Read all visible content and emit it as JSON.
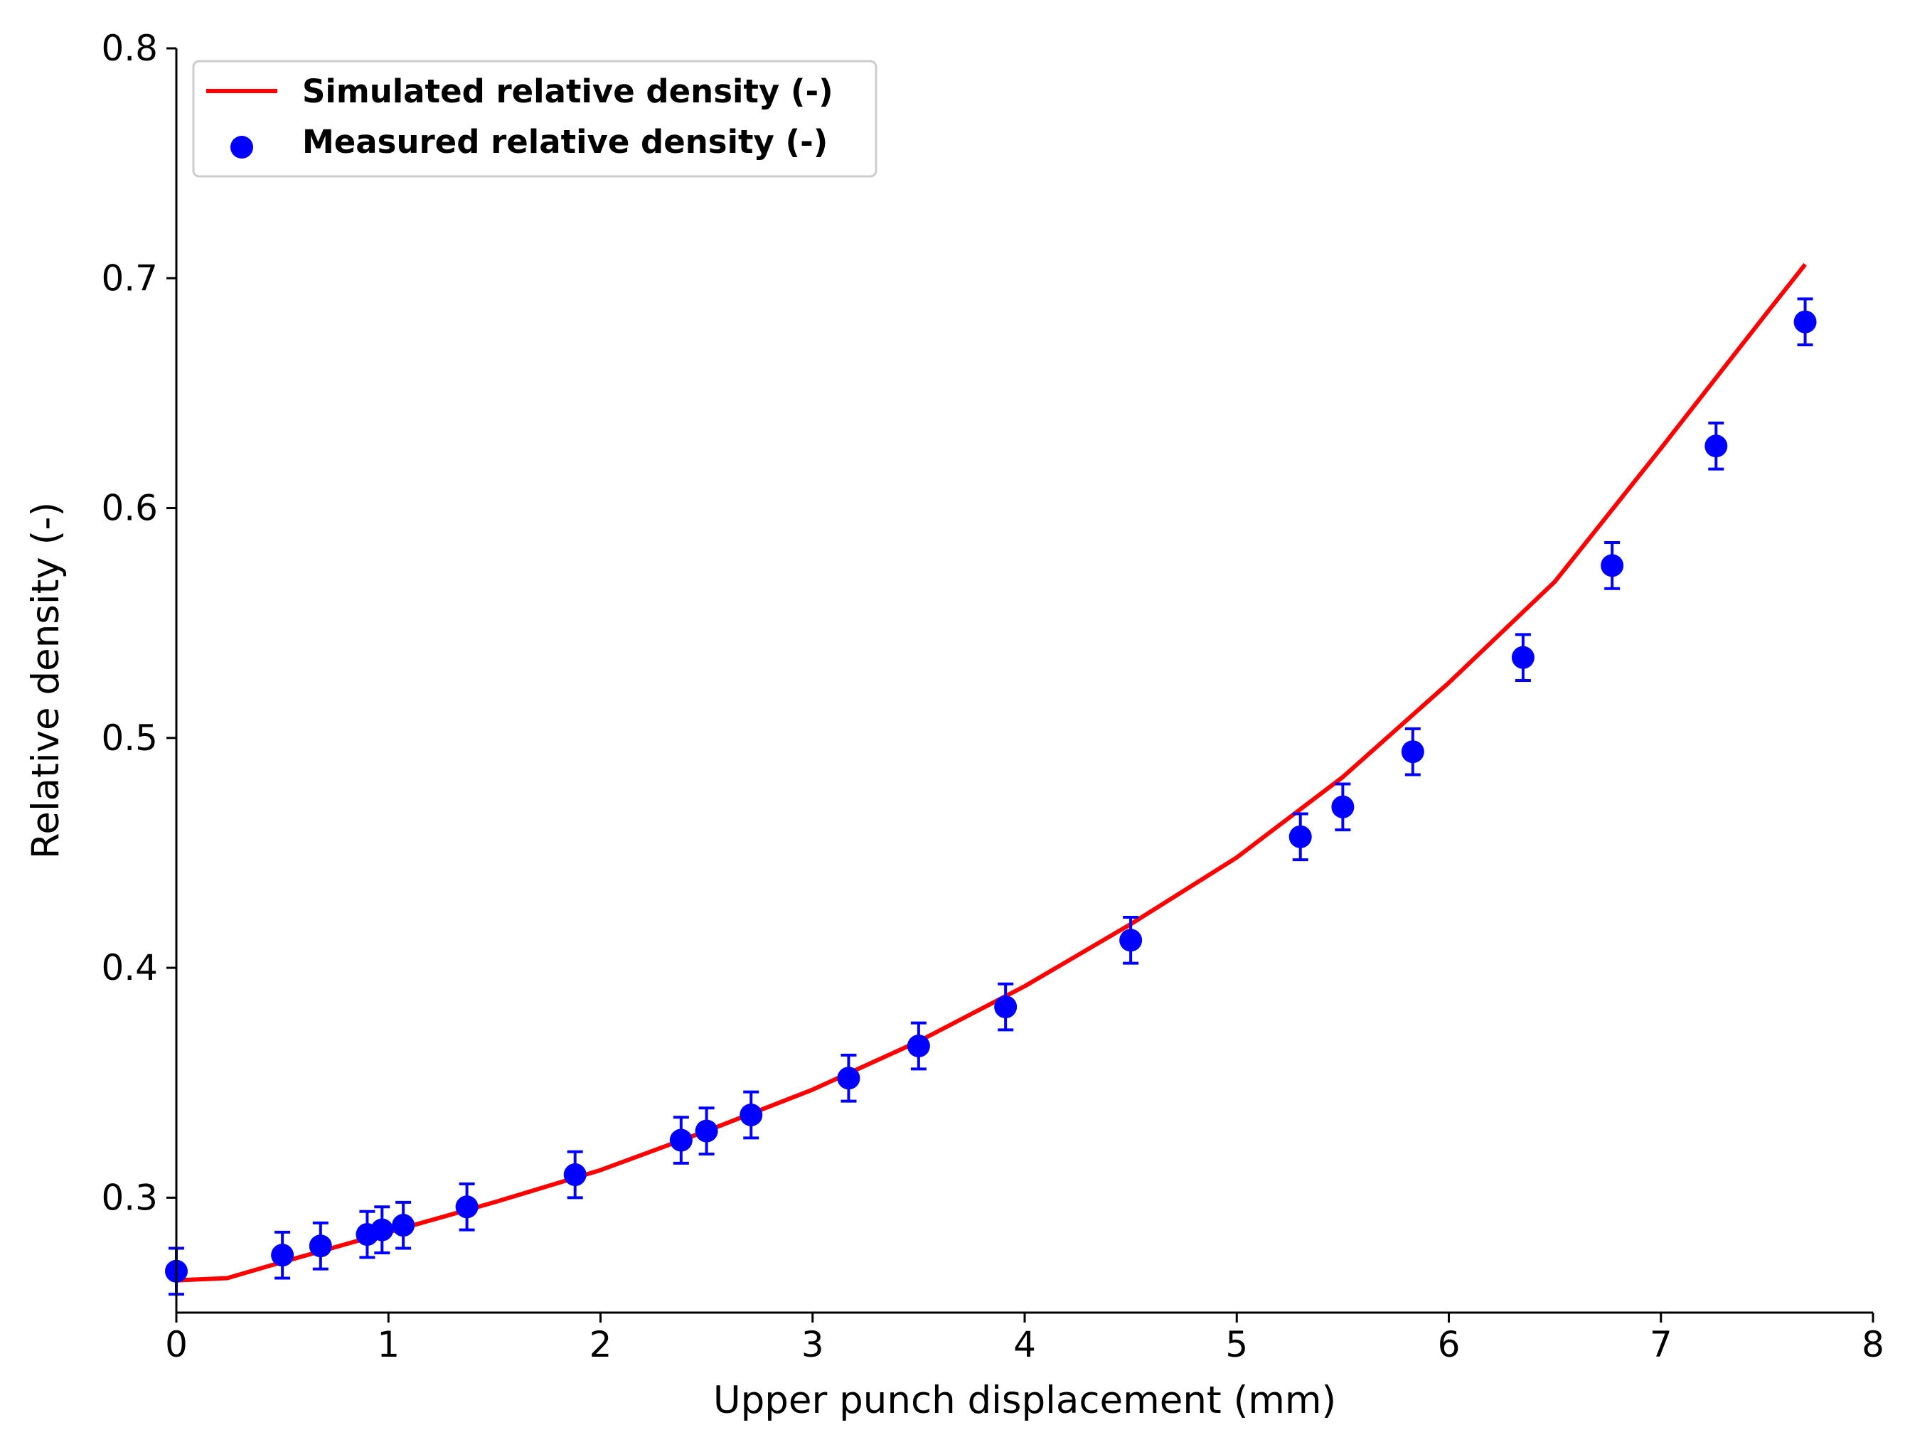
{
  "chart_data": {
    "type": "line",
    "title": "",
    "xlabel": "Upper punch displacement (mm)",
    "ylabel": "Relative density (-)",
    "xlim": [
      0,
      8
    ],
    "ylim": [
      0.25,
      0.8
    ],
    "xticks": [
      0,
      1,
      2,
      3,
      4,
      5,
      6,
      7,
      8
    ],
    "xtick_labels": [
      "0",
      "1",
      "2",
      "3",
      "4",
      "5",
      "6",
      "7",
      "8"
    ],
    "yticks": [
      0.3,
      0.4,
      0.5,
      0.6,
      0.7,
      0.8
    ],
    "ytick_labels": [
      "0.3",
      "0.4",
      "0.5",
      "0.6",
      "0.7",
      "0.8"
    ],
    "grid": false,
    "legend_position": "top-left",
    "colors": {
      "simulated": "#ff0000",
      "measured": "#0000ff"
    },
    "series": [
      {
        "name": "Simulated relative density (-)",
        "type": "line",
        "x": [
          0,
          0.24,
          0.5,
          1.0,
          1.5,
          2.0,
          2.5,
          3.0,
          3.5,
          4.0,
          4.5,
          5.0,
          5.5,
          6.0,
          6.5,
          7.0,
          7.5,
          7.68
        ],
        "y": [
          0.264,
          0.265,
          0.272,
          0.285,
          0.298,
          0.312,
          0.329,
          0.347,
          0.368,
          0.392,
          0.419,
          0.448,
          0.483,
          0.524,
          0.568,
          0.626,
          0.685,
          0.706
        ]
      },
      {
        "name": "Measured relative density (-)",
        "type": "scatter",
        "error": 0.01,
        "x": [
          0.0,
          0.5,
          0.68,
          0.9,
          0.97,
          1.07,
          1.37,
          1.88,
          2.38,
          2.5,
          2.71,
          3.17,
          3.5,
          3.91,
          4.5,
          5.3,
          5.5,
          5.83,
          6.35,
          6.77,
          7.26,
          7.68
        ],
        "y": [
          0.268,
          0.275,
          0.279,
          0.284,
          0.286,
          0.288,
          0.296,
          0.31,
          0.325,
          0.329,
          0.336,
          0.352,
          0.366,
          0.383,
          0.412,
          0.457,
          0.47,
          0.494,
          0.535,
          0.575,
          0.627,
          0.681
        ]
      }
    ]
  }
}
